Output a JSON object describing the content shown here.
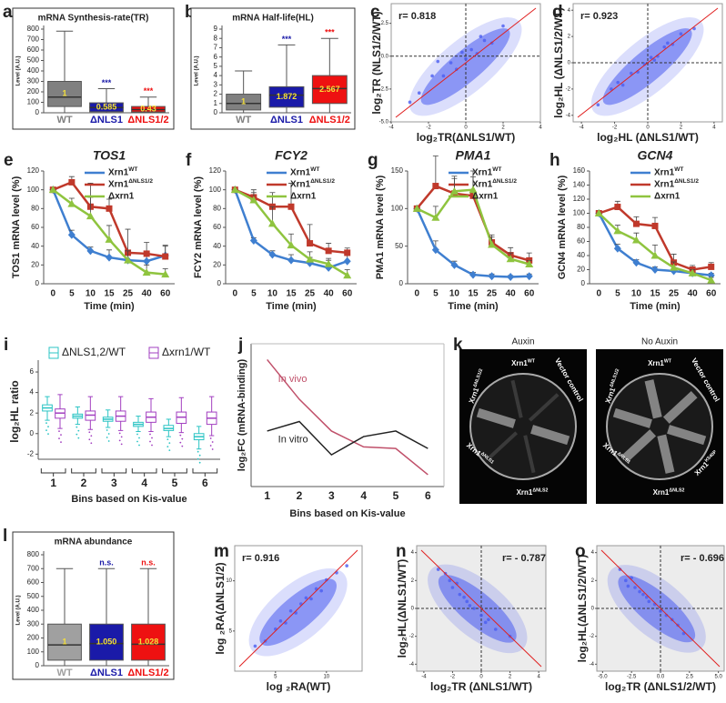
{
  "chart_data": [
    {
      "type": "box",
      "panel": "a",
      "title": "mRNA Synthesis-rate(TR)",
      "ylabel": "Level (A.U.)",
      "categories": [
        "WT",
        "ΔNLS1",
        "ΔNLS1/2"
      ],
      "colors": [
        "#808080",
        "#1a1aa8",
        "#ee1111"
      ],
      "boxes": [
        {
          "low": 0,
          "q1": 60,
          "median": 150,
          "q3": 300,
          "high": 780
        },
        {
          "low": 0,
          "q1": 10,
          "median": 50,
          "q3": 95,
          "high": 230
        },
        {
          "low": 0,
          "q1": 8,
          "median": 30,
          "q3": 60,
          "high": 150
        }
      ],
      "ratio_labels": [
        "1",
        "0.585",
        "0.43"
      ],
      "annotations": [
        null,
        "***",
        "***"
      ],
      "ylim": [
        0,
        800
      ],
      "yticks": [
        0,
        100,
        200,
        300,
        400,
        500,
        600,
        700,
        800
      ]
    },
    {
      "type": "box",
      "panel": "b",
      "title": "mRNA Half-life(HL)",
      "ylabel": "Level (A.U.)",
      "categories": [
        "WT",
        "ΔNLS1",
        "ΔNLS1/2"
      ],
      "colors": [
        "#808080",
        "#1a1aa8",
        "#ee1111"
      ],
      "boxes": [
        {
          "low": 0,
          "q1": 0.3,
          "median": 1,
          "q3": 2,
          "high": 4.5
        },
        {
          "low": 0,
          "q1": 0.6,
          "median": 1.9,
          "q3": 2.8,
          "high": 7.3
        },
        {
          "low": 0,
          "q1": 1,
          "median": 2.6,
          "q3": 4,
          "high": 8
        }
      ],
      "ratio_labels": [
        "1",
        "1.872",
        "2.567"
      ],
      "annotations": [
        null,
        "***",
        "***"
      ],
      "ylim": [
        0,
        9
      ],
      "yticks": [
        0,
        1,
        2,
        3,
        4,
        5,
        6,
        7,
        8,
        9
      ]
    },
    {
      "type": "scatter",
      "panel": "c",
      "annotation": "r=  0.818",
      "xlabel": "log₂TR(ΔNLS1/WT)",
      "ylabel": "log₂TR (NLS1/2/WT)",
      "color": "#4a5cf0",
      "zero_lines": true,
      "background": "#ffffff",
      "x": [
        -2.5,
        -1.8,
        -1.2,
        -0.8,
        -0.5,
        -0.2,
        0,
        0.3,
        0.6,
        1,
        1.4,
        2,
        -1.5,
        0.8,
        -3
      ],
      "y": [
        -2.8,
        -1.5,
        -1.5,
        -0.5,
        -1,
        0.3,
        -0.2,
        0.5,
        0.2,
        1.2,
        1,
        2.3,
        -0.4,
        1.5,
        -3.5
      ],
      "xlim": [
        -4,
        4
      ],
      "xticks": [
        -4,
        -2,
        0,
        2,
        4
      ],
      "ylim": [
        -5,
        4
      ],
      "yticks": [
        {
          "value": -5,
          "label": "-5.0"
        },
        {
          "value": -2.5,
          "label": "-2.5"
        },
        {
          "value": 0,
          "label": "0.0"
        },
        {
          "value": 2.5,
          "label": "2.5"
        }
      ]
    },
    {
      "type": "scatter",
      "panel": "d",
      "annotation": "r=  0.923",
      "xlabel": "log₂HL (ΔNLS1/WT)",
      "ylabel": "log₂HL (ΔNLS1/2/WT)",
      "color": "#4a5cf0",
      "zero_lines": true,
      "background": "#ffffff",
      "x": [
        -3,
        -2.2,
        -1.5,
        -1,
        -0.6,
        -0.2,
        0.2,
        0.6,
        1,
        1.5,
        2,
        2.8,
        -1.8,
        0.4,
        1.2
      ],
      "y": [
        -3.2,
        -2,
        -1.7,
        -0.8,
        -0.7,
        -0.1,
        0.4,
        0.5,
        1.2,
        1.4,
        2.2,
        2.6,
        -1.5,
        0.2,
        1.5
      ],
      "xlim": [
        -4.5,
        4.5
      ],
      "xticks": [
        -4,
        -2,
        0,
        2,
        4
      ],
      "ylim": [
        -4.5,
        4.5
      ],
      "yticks": [
        -4,
        -2,
        0,
        2,
        4
      ]
    },
    {
      "type": "line",
      "panel": "e",
      "title": "TOS1",
      "ylabel": "TOS1 mRNA level (%)",
      "xlabel": "Time (min)",
      "legend": true,
      "categories": [
        "0",
        "5",
        "10",
        "15",
        "25",
        "40",
        "60"
      ],
      "ylim": [
        0,
        120
      ],
      "yticks": [
        0,
        20,
        40,
        60,
        80,
        100,
        120
      ],
      "series": [
        {
          "name": "Xrn1",
          "name_sup": "WT",
          "color": "#3f7fd0",
          "marker": "diamond",
          "values": [
            100,
            52,
            35,
            28,
            25,
            24,
            30
          ],
          "errors": [
            0,
            5,
            4,
            8,
            6,
            8,
            10
          ]
        },
        {
          "name": "Xrn1",
          "name_sup": "ΔNLS1/2",
          "color": "#c0392b",
          "marker": "square",
          "values": [
            100,
            108,
            82,
            80,
            33,
            32,
            29
          ],
          "errors": [
            0,
            6,
            25,
            10,
            25,
            12,
            12
          ]
        },
        {
          "name": "Δxrn1",
          "color": "#8fc43f",
          "marker": "triangle",
          "values": [
            100,
            85,
            72,
            47,
            25,
            12,
            10
          ],
          "errors": [
            0,
            6,
            20,
            15,
            10,
            8,
            6
          ]
        }
      ]
    },
    {
      "type": "line",
      "panel": "f",
      "title": "FCY2",
      "ylabel": "FCY2 mRNA level (%)",
      "xlabel": "Time (min)",
      "legend": true,
      "categories": [
        "0",
        "5",
        "10",
        "15",
        "25",
        "40",
        "60"
      ],
      "ylim": [
        0,
        120
      ],
      "yticks": [
        0,
        20,
        40,
        60,
        80,
        100,
        120
      ],
      "series": [
        {
          "name": "Xrn1",
          "name_sup": "WT",
          "color": "#3f7fd0",
          "marker": "diamond",
          "values": [
            100,
            46,
            31,
            25,
            22,
            17,
            24
          ],
          "errors": [
            0,
            3,
            4,
            6,
            6,
            8,
            6
          ]
        },
        {
          "name": "Xrn1",
          "name_sup": "ΔNLS1/2",
          "color": "#c0392b",
          "marker": "square",
          "values": [
            100,
            92,
            82,
            82,
            43,
            35,
            33
          ],
          "errors": [
            0,
            8,
            15,
            25,
            20,
            8,
            5
          ]
        },
        {
          "name": "Δxrn1",
          "color": "#8fc43f",
          "marker": "triangle",
          "values": [
            100,
            89,
            64,
            41,
            26,
            21,
            9
          ],
          "errors": [
            0,
            8,
            18,
            12,
            8,
            6,
            6
          ]
        }
      ]
    },
    {
      "type": "line",
      "panel": "g",
      "title": "PMA1",
      "ylabel": "PMA1 mRNA level (%)",
      "xlabel": "Time (min)",
      "legend": true,
      "categories": [
        "0",
        "5",
        "10",
        "15",
        "25",
        "40",
        "60"
      ],
      "ylim": [
        0,
        150
      ],
      "yticks": [
        0,
        50,
        100,
        150
      ],
      "series": [
        {
          "name": "Xrn1",
          "name_sup": "WT",
          "color": "#3f7fd0",
          "marker": "diamond",
          "values": [
            100,
            45,
            25,
            12,
            10,
            9,
            10
          ],
          "errors": [
            0,
            12,
            5,
            3,
            3,
            2,
            3
          ]
        },
        {
          "name": "Xrn1",
          "name_sup": "ΔNLS1/2",
          "color": "#c0392b",
          "marker": "square",
          "values": [
            100,
            130,
            120,
            117,
            55,
            38,
            31
          ],
          "errors": [
            0,
            40,
            20,
            25,
            10,
            10,
            10
          ]
        },
        {
          "name": "Δxrn1",
          "color": "#8fc43f",
          "marker": "triangle",
          "values": [
            100,
            88,
            123,
            125,
            52,
            33,
            26
          ],
          "errors": [
            0,
            15,
            20,
            25,
            10,
            8,
            5
          ]
        }
      ]
    },
    {
      "type": "line",
      "panel": "h",
      "title": "GCN4",
      "ylabel": "GCN4 mRNA level (%)",
      "xlabel": "Time (min)",
      "legend": true,
      "categories": [
        "0",
        "5",
        "10",
        "15",
        "25",
        "40",
        "60"
      ],
      "ylim": [
        0,
        160
      ],
      "yticks": [
        0,
        20,
        40,
        60,
        80,
        100,
        120,
        140,
        160
      ],
      "series": [
        {
          "name": "Xrn1",
          "name_sup": "WT",
          "color": "#3f7fd0",
          "marker": "diamond",
          "values": [
            100,
            50,
            30,
            20,
            18,
            15,
            12
          ],
          "errors": [
            0,
            6,
            4,
            4,
            3,
            3,
            3
          ]
        },
        {
          "name": "Xrn1",
          "name_sup": "ΔNLS1/2",
          "color": "#c0392b",
          "marker": "square",
          "values": [
            100,
            109,
            85,
            82,
            30,
            20,
            24
          ],
          "errors": [
            0,
            8,
            10,
            12,
            12,
            6,
            6
          ]
        },
        {
          "name": "Δxrn1",
          "color": "#8fc43f",
          "marker": "triangle",
          "values": [
            100,
            75,
            62,
            40,
            23,
            15,
            5
          ],
          "errors": [
            0,
            8,
            10,
            15,
            8,
            5,
            4
          ]
        }
      ]
    },
    {
      "type": "box",
      "panel": "i",
      "ylabel": "log₂HL ratio",
      "xlabel": "Bins based on Kis-value",
      "categories": [
        "1",
        "2",
        "3",
        "4",
        "5",
        "6"
      ],
      "ylim": [
        -2.5,
        6.8
      ],
      "yticks": [
        -2,
        0,
        2,
        4,
        6
      ],
      "series": [
        {
          "name": "ΔNLS1,2/WT",
          "color": "#2bc4c4",
          "boxes": [
            {
              "low": 1.3,
              "q1": 2.2,
              "median": 2.5,
              "q3": 2.8,
              "high": 3.6
            },
            {
              "low": 0.9,
              "q1": 1.5,
              "median": 1.7,
              "q3": 1.9,
              "high": 2.6
            },
            {
              "low": 0.6,
              "q1": 1.2,
              "median": 1.4,
              "q3": 1.6,
              "high": 2.3
            },
            {
              "low": 0.2,
              "q1": 0.7,
              "median": 0.9,
              "q3": 1.1,
              "high": 1.7
            },
            {
              "low": -0.3,
              "q1": 0.3,
              "median": 0.5,
              "q3": 0.8,
              "high": 1.4
            },
            {
              "low": -1.5,
              "q1": -0.6,
              "median": -0.3,
              "q3": 0,
              "high": 0.7
            }
          ]
        },
        {
          "name": "Δxrn1/WT",
          "color": "#a23fc0",
          "boxes": [
            {
              "low": 0.5,
              "q1": 1.5,
              "median": 2.0,
              "q3": 2.4,
              "high": 3.8
            },
            {
              "low": 0.4,
              "q1": 1.3,
              "median": 1.8,
              "q3": 2.2,
              "high": 3.6
            },
            {
              "low": 0.3,
              "q1": 1.2,
              "median": 1.7,
              "q3": 2.2,
              "high": 3.6
            },
            {
              "low": 0.2,
              "q1": 1.1,
              "median": 1.6,
              "q3": 2.1,
              "high": 3.4
            },
            {
              "low": 0.1,
              "q1": 1.0,
              "median": 1.6,
              "q3": 2.1,
              "high": 3.5
            },
            {
              "low": -0.2,
              "q1": 0.9,
              "median": 1.5,
              "q3": 2.1,
              "high": 3.6
            }
          ]
        }
      ]
    },
    {
      "type": "line",
      "panel": "j",
      "ylabel": "log₂FC (mRNA-binding)",
      "xlabel": "Bins based on Kis-value",
      "legend": false,
      "categories": [
        "1",
        "2",
        "3",
        "4",
        "5",
        "6"
      ],
      "ylim": [
        -0.06,
        0.12
      ],
      "series": [
        {
          "name": "In vivo",
          "color": "#c0506a",
          "values": [
            0.1,
            0.05,
            0.01,
            -0.01,
            -0.012,
            -0.045
          ]
        },
        {
          "name": "In vitro",
          "color": "#222222",
          "values": [
            0.01,
            0.022,
            -0.02,
            0.003,
            0.01,
            -0.012
          ]
        }
      ]
    },
    {
      "type": "image",
      "panel": "k",
      "plates": [
        {
          "title": "Auxin",
          "labels": [
            {
              "text": "Xrn1",
              "sup": "WT"
            },
            {
              "text": "Vector control"
            },
            {
              "text": "Xrn1",
              "sup": "ΔNLS1/2"
            },
            {
              "text": "Xrn1",
              "sup": "ΔNLS1"
            },
            {
              "text": "Xrn1",
              "sup": " ΔNLS2"
            }
          ]
        },
        {
          "title": "No Auxin",
          "labels": [
            {
              "text": "Xrn1",
              "sup": "WT"
            },
            {
              "text": "Vector control"
            },
            {
              "text": "Xrn1",
              "sup": "ΔNLS1/2"
            },
            {
              "text": "Xrn1",
              "sup": "ΔNLS1"
            },
            {
              "text": "Xrn1",
              "sup": "ΔNLS2"
            },
            {
              "text": "Xrn1",
              "sup": "K540P"
            }
          ]
        }
      ]
    },
    {
      "type": "box",
      "panel": "l",
      "title": "mRNA abundance",
      "ylabel": "Level (A.U.)",
      "categories": [
        "WT",
        "ΔNLS1",
        "ΔNLS1/2"
      ],
      "colors": [
        "#a0a0a0",
        "#1a1aa8",
        "#ee1111"
      ],
      "boxes": [
        {
          "low": 0,
          "q1": 40,
          "median": 150,
          "q3": 300,
          "high": 700
        },
        {
          "low": 0,
          "q1": 40,
          "median": 160,
          "q3": 300,
          "high": 700
        },
        {
          "low": 0,
          "q1": 40,
          "median": 155,
          "q3": 300,
          "high": 700
        }
      ],
      "ratio_labels": [
        "1",
        "1.050",
        "1.028"
      ],
      "annotations": [
        null,
        "n.s.",
        "n.s."
      ],
      "ylim": [
        0,
        800
      ],
      "yticks": [
        0,
        100,
        200,
        300,
        400,
        500,
        600,
        700,
        800
      ]
    },
    {
      "type": "scatter",
      "panel": "m",
      "annotation": "r=  0.916",
      "xlabel": "log ₂RA(WT)",
      "ylabel": "log ₂RA(ΔNLS1/2)",
      "color": "#4a5cf0",
      "zero_lines": false,
      "background": "#ffffff",
      "x": [
        3,
        4,
        5,
        6,
        6.5,
        7,
        7.5,
        8,
        8.5,
        9,
        10,
        11,
        5.5,
        9.5,
        12
      ],
      "y": [
        3.5,
        4,
        5.2,
        5.8,
        7,
        6.8,
        7.7,
        8.3,
        8.2,
        9.2,
        10.1,
        10.8,
        6,
        9,
        11.5
      ],
      "xlim": [
        1,
        13.5
      ],
      "xticks": [
        5,
        10
      ],
      "ylim": [
        1,
        13.5
      ],
      "yticks": [
        5,
        10
      ]
    },
    {
      "type": "scatter",
      "panel": "n",
      "annotation": "r= - 0.787",
      "xlabel": "log₂TR (ΔNLS1/WT)",
      "ylabel": "log₂HL(ΔNLS1/WT)",
      "color": "#4a5cf0",
      "zero_lines": true,
      "background": "#ececec",
      "x": [
        -3,
        -2.5,
        -2,
        -1.7,
        -1.5,
        -1.2,
        -1,
        -0.5,
        0,
        0.5,
        1,
        2,
        -2.2,
        -0.8,
        0.3
      ],
      "y": [
        2.8,
        2.5,
        1.5,
        1.8,
        1,
        0.8,
        0.5,
        0,
        -0.5,
        -0.8,
        -1.5,
        -2,
        2,
        0.2,
        -1
      ],
      "xlim": [
        -4.5,
        4.5
      ],
      "xticks": [
        -4,
        -2,
        0,
        2,
        4
      ],
      "ylim": [
        -4.5,
        4.5
      ],
      "yticks": [
        -4,
        -2,
        0,
        2,
        4
      ]
    },
    {
      "type": "scatter",
      "panel": "o",
      "annotation": "r= - 0.696",
      "xlabel": "log₂TR (ΔNLS1/2/WT)",
      "ylabel": "log₂HL(ΔNLS1/2/WT)",
      "color": "#4a5cf0",
      "zero_lines": true,
      "background": "#ececec",
      "x": [
        -3.5,
        -3,
        -2.5,
        -2.2,
        -1.8,
        -1.5,
        -1,
        -0.5,
        0,
        0.5,
        1,
        2,
        -2.8,
        -1.2,
        1.5
      ],
      "y": [
        2.8,
        2,
        2.2,
        1.5,
        1.2,
        1,
        0.5,
        0.3,
        -0.2,
        -0.5,
        -0.8,
        -1.8,
        1.6,
        0.8,
        -1.2
      ],
      "xlim": [
        -5.5,
        5.5
      ],
      "xticks": [
        {
          "value": -5,
          "label": "-5.0"
        },
        {
          "value": -2.5,
          "label": "-2.5"
        },
        {
          "value": 0,
          "label": "0.0"
        },
        {
          "value": 2.5,
          "label": "2.5"
        },
        {
          "value": 5,
          "label": "5.0"
        }
      ],
      "ylim": [
        -4.5,
        4.5
      ],
      "yticks": [
        -4,
        -2,
        0,
        2,
        4
      ]
    }
  ]
}
